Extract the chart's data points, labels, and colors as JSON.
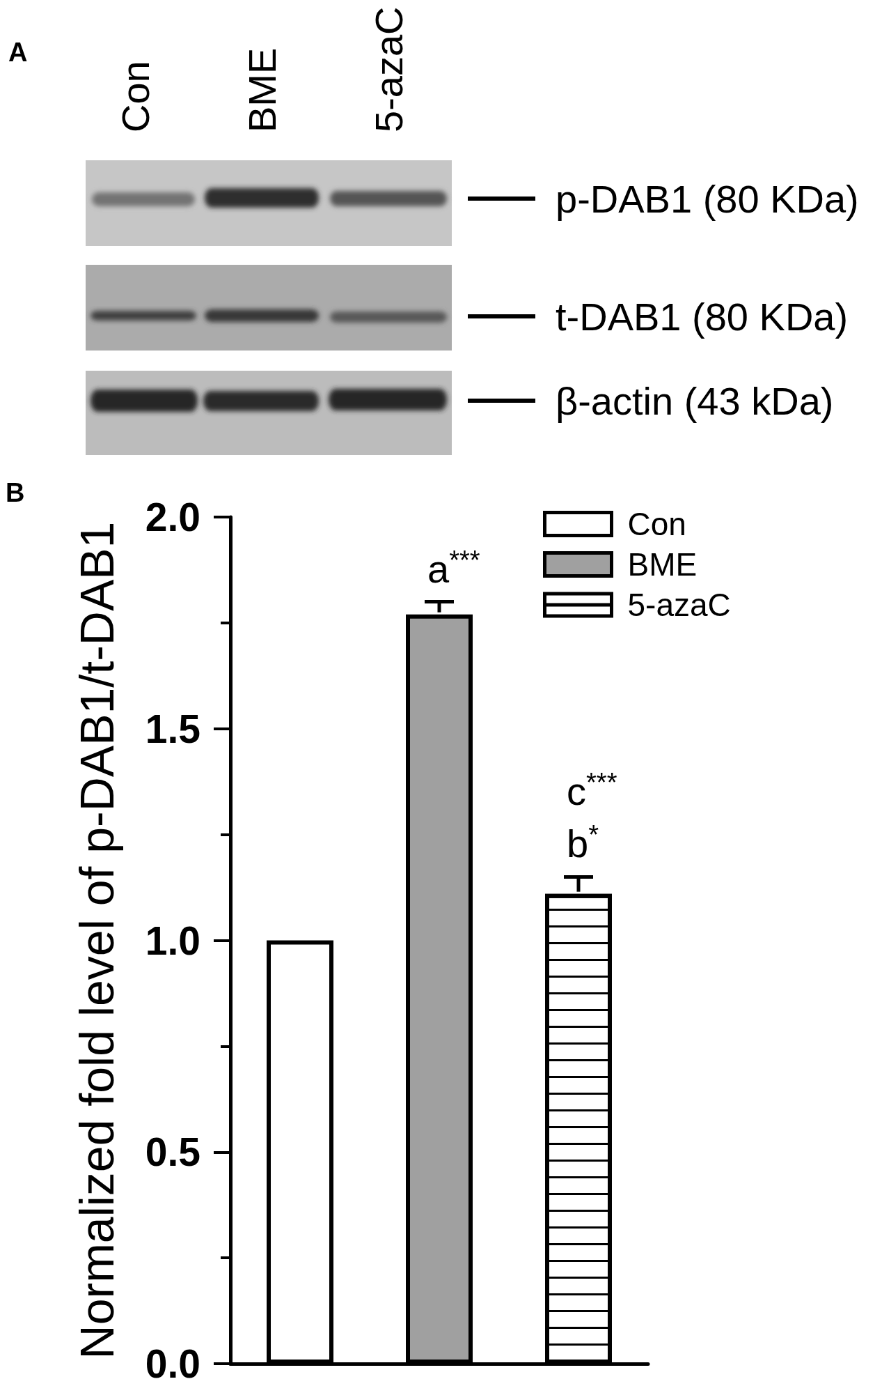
{
  "chart_data": [
    {
      "type": "other",
      "title": "A",
      "annotations": [
        "Con",
        "BME",
        "5-azaC",
        "p-DAB1 (80 KDa)",
        "t-DAB1 (80 KDa)",
        "β-actin (43 kDa)"
      ]
    },
    {
      "type": "bar",
      "title": "B",
      "ylabel": "Normalized fold level of p-DAB1/t-DAB1",
      "categories": [
        null,
        null,
        null
      ],
      "series": [
        {
          "name": "Con",
          "color": "#ffffff",
          "values": [
            1.0,
            null,
            null
          ]
        },
        {
          "name": "BME",
          "color": "#a0a0a0",
          "values": [
            null,
            1.77,
            null
          ],
          "errors": [
            null,
            0.03,
            null
          ]
        },
        {
          "name": "5-azaC",
          "color": "#ffffff",
          "values": [
            null,
            null,
            1.11
          ],
          "errors": [
            null,
            null,
            0.04
          ]
        }
      ],
      "ylim": [
        0,
        2
      ],
      "yticks": [
        {
          "value": 0,
          "label": "0.0"
        },
        {
          "value": 0.25,
          "label": null
        },
        {
          "value": 0.5,
          "label": "0.5"
        },
        {
          "value": 0.75,
          "label": null
        },
        {
          "value": 1,
          "label": "1.0"
        },
        {
          "value": 1.25,
          "label": null
        },
        {
          "value": 1.5,
          "label": "1.5"
        },
        {
          "value": 1.75,
          "label": null
        },
        {
          "value": 2,
          "label": "2.0"
        }
      ],
      "tick_labels": "y",
      "legend": "top right",
      "annotations": [
        "a$^{***}$",
        "c$^{***}$",
        "b$^{*}$"
      ]
    }
  ]
}
